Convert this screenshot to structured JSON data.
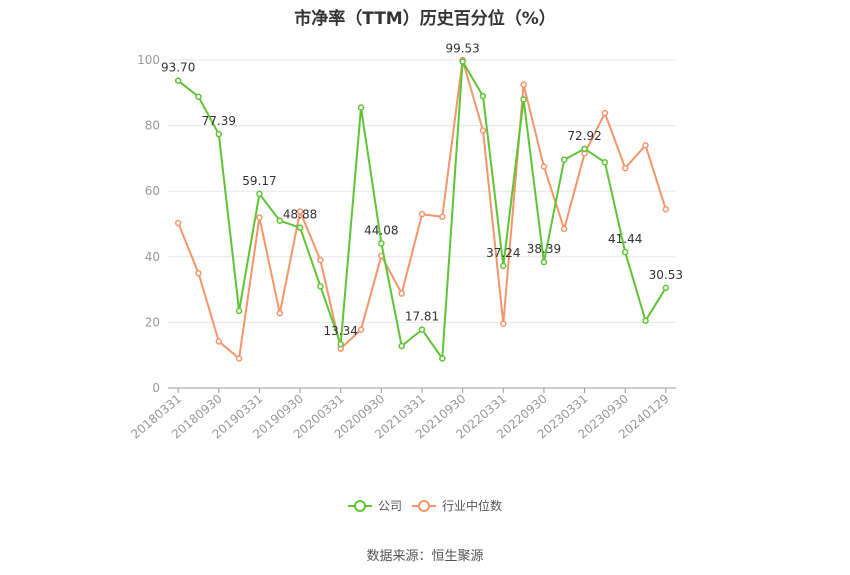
{
  "title": "市净率（TTM）历史百分位（%）",
  "source": "数据来源：恒生聚源",
  "colors": {
    "company": "#5ec435",
    "industry": "#f4956a",
    "grid": "#e6e6e6",
    "axis": "#999999"
  },
  "chart_data": {
    "type": "line",
    "title": "市净率（TTM）历史百分位（%）",
    "ylim": [
      0,
      100
    ],
    "yticks": [
      0,
      20,
      40,
      60,
      80,
      100
    ],
    "grid": true,
    "legend_position": "bottom",
    "x": [
      "20180331",
      "20180630",
      "20180930",
      "20181231",
      "20190331",
      "20190630",
      "20190930",
      "20191231",
      "20200331",
      "20200630",
      "20200930",
      "20201231",
      "20210331",
      "20210630",
      "20210930",
      "20211231",
      "20220331",
      "20220630",
      "20220930",
      "20221231",
      "20230331",
      "20230630",
      "20230930",
      "20231231",
      "20240129"
    ],
    "x_tick_labels": [
      "20180331",
      "20180930",
      "20190331",
      "20190930",
      "20200331",
      "20200930",
      "20210331",
      "20210930",
      "20220331",
      "20220930",
      "20230331",
      "20230930",
      "20240129"
    ],
    "series": [
      {
        "name": "公司",
        "values": [
          93.7,
          88.8,
          77.39,
          23.5,
          59.17,
          51.0,
          48.88,
          31.0,
          13.34,
          85.5,
          44.08,
          12.8,
          17.81,
          9.0,
          99.53,
          89.0,
          37.24,
          88.0,
          38.39,
          69.6,
          72.92,
          68.8,
          41.44,
          20.5,
          30.53
        ]
      },
      {
        "name": "行业中位数",
        "values": [
          50.3,
          35.0,
          14.2,
          9.0,
          52.0,
          22.8,
          53.8,
          39.0,
          12.0,
          17.8,
          40.3,
          28.8,
          53.0,
          52.2,
          100.0,
          78.5,
          19.6,
          92.5,
          67.5,
          48.5,
          71.5,
          83.8,
          67.0,
          74.0,
          54.5
        ]
      }
    ],
    "data_labels": [
      {
        "index": 0,
        "text": "93.70"
      },
      {
        "index": 2,
        "text": "77.39"
      },
      {
        "index": 4,
        "text": "59.17"
      },
      {
        "index": 6,
        "text": "48.88"
      },
      {
        "index": 8,
        "text": "13.34"
      },
      {
        "index": 10,
        "text": "44.08"
      },
      {
        "index": 12,
        "text": "17.81"
      },
      {
        "index": 14,
        "text": "99.53"
      },
      {
        "index": 16,
        "text": "37.24"
      },
      {
        "index": 18,
        "text": "38.39"
      },
      {
        "index": 20,
        "text": "72.92"
      },
      {
        "index": 22,
        "text": "41.44"
      },
      {
        "index": 24,
        "text": "30.53"
      }
    ]
  }
}
